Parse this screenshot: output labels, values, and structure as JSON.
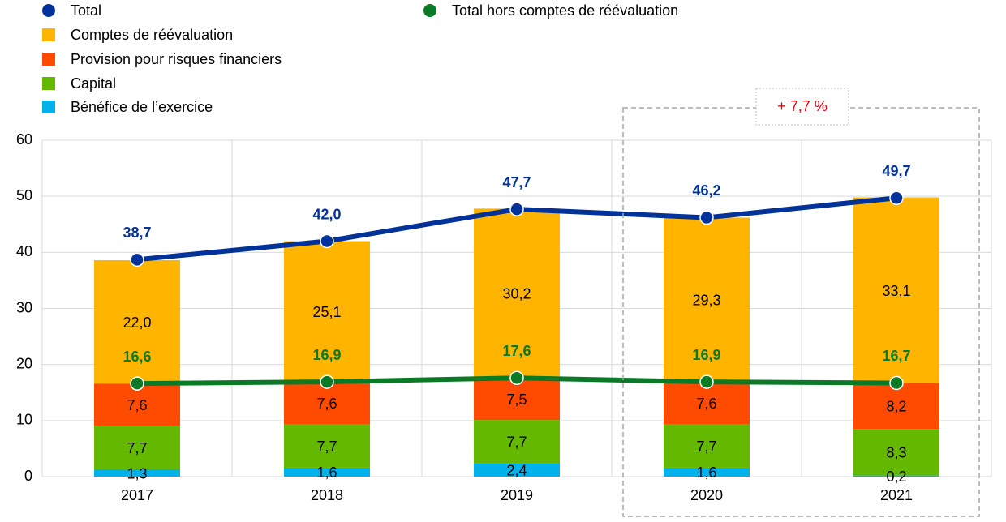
{
  "chart_data": {
    "type": "bar",
    "categories": [
      "2017",
      "2018",
      "2019",
      "2020",
      "2021"
    ],
    "series": [
      {
        "name": "Total",
        "type": "line",
        "color": "#003299",
        "values": [
          38.7,
          42.0,
          47.7,
          46.2,
          49.7
        ],
        "value_labels": [
          "38,7",
          "42,0",
          "47,7",
          "46,2",
          "49,7"
        ]
      },
      {
        "name": "Comptes de réévaluation",
        "type": "bar",
        "color": "#ffb400",
        "values": [
          22.0,
          25.1,
          30.2,
          29.3,
          33.1
        ],
        "value_labels": [
          "22,0",
          "25,1",
          "30,2",
          "29,3",
          "33,1"
        ]
      },
      {
        "name": "Provision pour risques financiers",
        "type": "bar",
        "color": "#ff4b00",
        "values": [
          7.6,
          7.6,
          7.5,
          7.6,
          8.2
        ],
        "value_labels": [
          "7,6",
          "7,6",
          "7,5",
          "7,6",
          "8,2"
        ]
      },
      {
        "name": "Capital",
        "type": "bar",
        "color": "#65b800",
        "values": [
          7.7,
          7.7,
          7.7,
          7.7,
          8.3
        ],
        "value_labels": [
          "7,7",
          "7,7",
          "7,7",
          "7,7",
          "8,3"
        ]
      },
      {
        "name": "Bénéfice de l’exercice",
        "type": "bar",
        "color": "#00b1ea",
        "values": [
          1.3,
          1.6,
          2.4,
          1.6,
          0.2
        ],
        "value_labels": [
          "1,3",
          "1,6",
          "2,4",
          "1,6",
          "0,2"
        ]
      },
      {
        "name": "Total hors comptes de réévaluation",
        "type": "line",
        "color": "#0b7a26",
        "values": [
          16.6,
          16.9,
          17.6,
          16.9,
          16.7
        ],
        "value_labels": [
          "16,6",
          "16,9",
          "17,6",
          "16,9",
          "16,7"
        ]
      }
    ],
    "annotation": "+ 7,7 %",
    "ylim": [
      0,
      60
    ],
    "yticks": [
      0,
      10,
      20,
      30,
      40,
      50,
      60
    ],
    "grid": true,
    "stacked": true
  }
}
